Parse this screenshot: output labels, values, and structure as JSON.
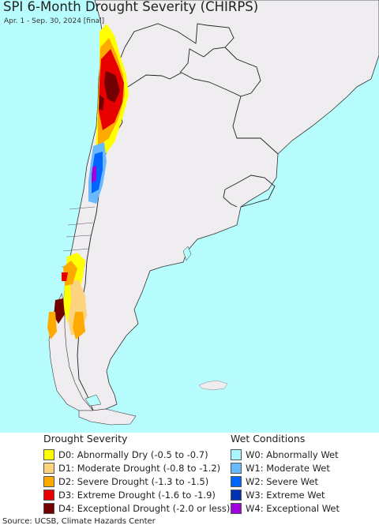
{
  "title": "SPI 6-Month Drought Severity (CHIRPS)",
  "subtitle": "Apr. 1 - Sep. 30, 2024 [final]",
  "legend": {
    "drought": {
      "heading": "Drought Severity",
      "items": [
        {
          "code": "D0",
          "label": "D0: Abnormally Dry (-0.5 to -0.7)",
          "color": "#ffff00"
        },
        {
          "code": "D1",
          "label": "D1: Moderate Drought (-0.8 to -1.2)",
          "color": "#fcd37f"
        },
        {
          "code": "D2",
          "label": "D2: Severe Drought (-1.3 to -1.5)",
          "color": "#ffaa00"
        },
        {
          "code": "D3",
          "label": "D3: Extreme Drought (-1.6 to -1.9)",
          "color": "#e60000"
        },
        {
          "code": "D4",
          "label": "D4: Exceptional Drought (-2.0 or less)",
          "color": "#730000"
        }
      ]
    },
    "wet": {
      "heading": "Wet Conditions",
      "items": [
        {
          "code": "W0",
          "label": "W0: Abnormally Wet",
          "color": "#aaf5ff"
        },
        {
          "code": "W1",
          "label": "W1: Moderate Wet",
          "color": "#6ab9ff"
        },
        {
          "code": "W2",
          "label": "W2: Severe Wet",
          "color": "#0064ff"
        },
        {
          "code": "W3",
          "label": "W3: Extreme Wet",
          "color": "#0032b4"
        },
        {
          "code": "W4",
          "label": "W4: Exceptional Wet",
          "color": "#a000dc"
        }
      ]
    }
  },
  "source": "Source: UCSB, Climate Hazards Center",
  "colors": {
    "ocean": "#b8fdfd",
    "land": "#efedf0",
    "border": "#222222"
  }
}
